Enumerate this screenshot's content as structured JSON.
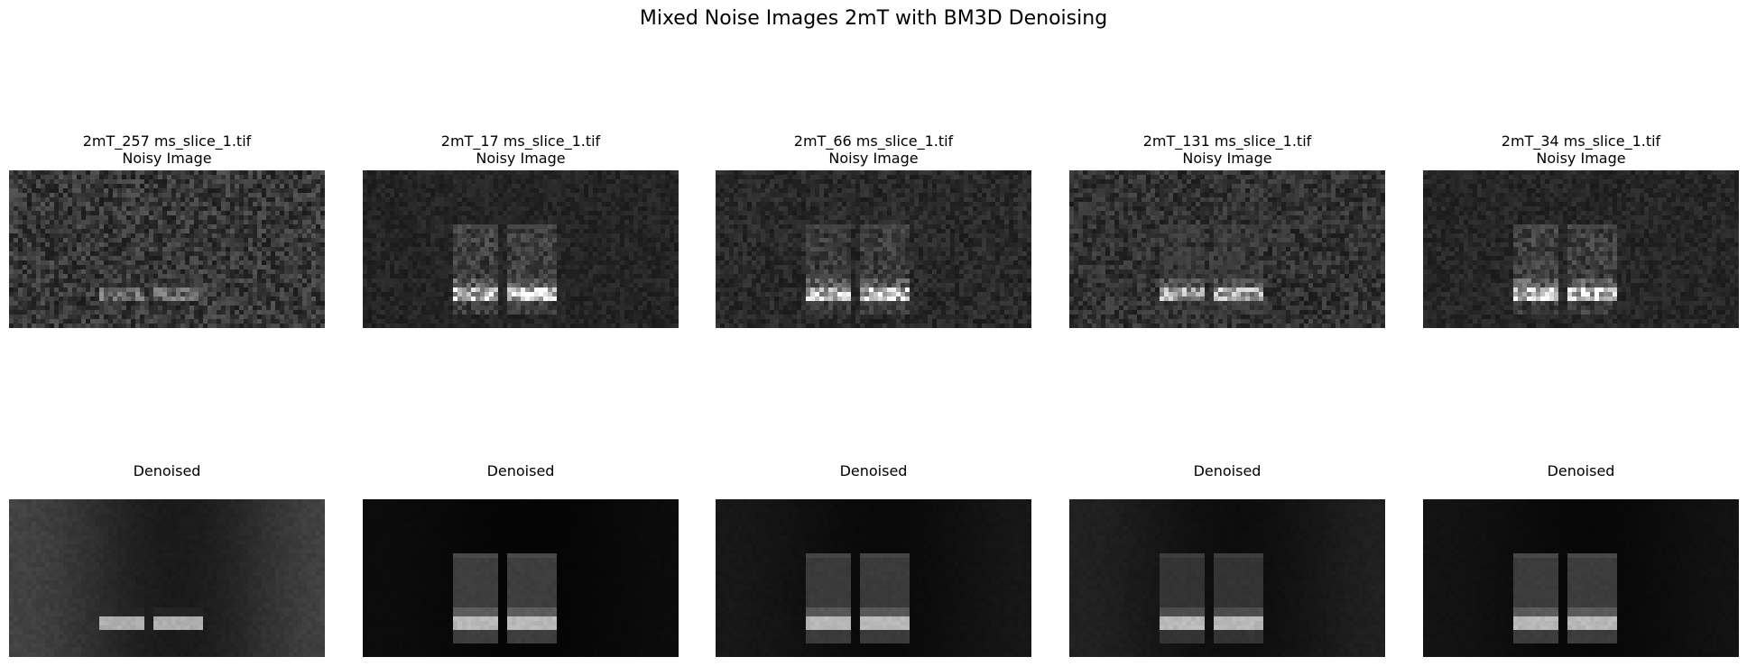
{
  "figure": {
    "title": "Mixed Noise Images 2mT with BM3D Denoising"
  },
  "noisy_row": [
    {
      "line1": "2mT_257 ms_slice_1.tif",
      "line2": "Noisy Image",
      "noise": 0.95,
      "signal": 0.35,
      "hotband": 0.55
    },
    {
      "line1": "2mT_17 ms_slice_1.tif",
      "line2": "Noisy Image",
      "noise": 0.35,
      "signal": 0.85,
      "hotband": 1.0
    },
    {
      "line1": "2mT_66 ms_slice_1.tif",
      "line2": "Noisy Image",
      "noise": 0.5,
      "signal": 0.8,
      "hotband": 0.95
    },
    {
      "line1": "2mT_131 ms_slice_1.tif",
      "line2": "Noisy Image",
      "noise": 0.75,
      "signal": 0.7,
      "hotband": 0.85
    },
    {
      "line1": "2mT_34 ms_slice_1.tif",
      "line2": "Noisy Image",
      "noise": 0.4,
      "signal": 0.85,
      "hotband": 1.0
    }
  ],
  "denoised_row": [
    {
      "label": "Denoised",
      "bg": 0.28,
      "signal": 0.35,
      "hotband": 0.95
    },
    {
      "label": "Denoised",
      "bg": 0.05,
      "signal": 0.9,
      "hotband": 1.0
    },
    {
      "label": "Denoised",
      "bg": 0.1,
      "signal": 0.85,
      "hotband": 1.0
    },
    {
      "label": "Denoised",
      "bg": 0.14,
      "signal": 0.75,
      "hotband": 1.0
    },
    {
      "label": "Denoised",
      "bg": 0.08,
      "signal": 0.88,
      "hotband": 1.0
    }
  ]
}
